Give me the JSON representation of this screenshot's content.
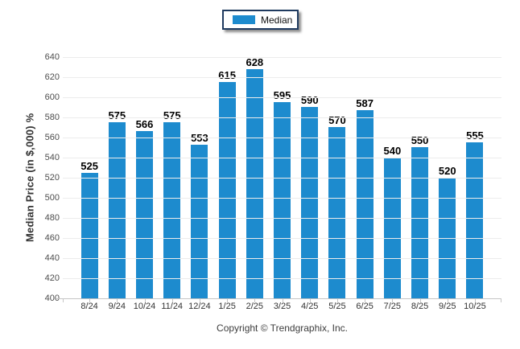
{
  "chart_data": {
    "type": "bar",
    "title": "",
    "legend_entries": [
      "Median"
    ],
    "legend_position": "top-center",
    "categories": [
      "8/24",
      "9/24",
      "10/24",
      "11/24",
      "12/24",
      "1/25",
      "2/25",
      "3/25",
      "4/25",
      "5/25",
      "6/25",
      "7/25",
      "8/25",
      "9/25",
      "10/25"
    ],
    "values": [
      525,
      575,
      566,
      575,
      553,
      615,
      628,
      595,
      590,
      570,
      587,
      540,
      550,
      520,
      555
    ],
    "xlabel": "",
    "ylabel": "Median Price (in $,000) %",
    "ylim": [
      400,
      640
    ],
    "ytick_step": 20,
    "grid": true,
    "value_labels_shown": true
  },
  "footer": {
    "copyright": "Copyright © Trendgraphix, Inc."
  },
  "colors": {
    "bar": "#1d8bce",
    "legend_border": "#1f3a5f",
    "grid": "#ececec",
    "axis": "#c5c5c5",
    "tick_label": "#4d4d4d",
    "tick_label_x": "#333333",
    "value_label": "#000000",
    "axis_title": "#333333",
    "copyright": "#3d3d3d"
  }
}
